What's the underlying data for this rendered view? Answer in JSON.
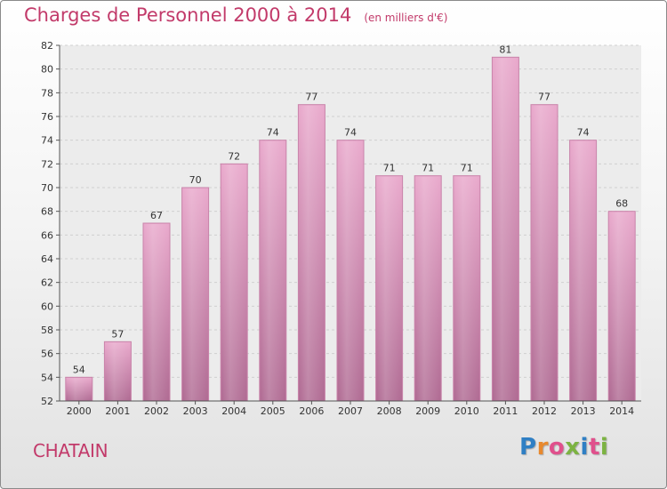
{
  "chart_data": {
    "type": "bar",
    "title": "Charges de Personnel 2000 à 2014",
    "subtitle": "(en milliers d'€)",
    "categories": [
      "2000",
      "2001",
      "2002",
      "2003",
      "2004",
      "2005",
      "2006",
      "2007",
      "2008",
      "2009",
      "2010",
      "2011",
      "2012",
      "2013",
      "2014"
    ],
    "values": [
      54,
      57,
      67,
      70,
      72,
      74,
      77,
      74,
      71,
      71,
      71,
      81,
      77,
      74,
      68
    ],
    "ylim": [
      52,
      82
    ],
    "yticks": [
      52,
      54,
      56,
      58,
      60,
      62,
      64,
      66,
      68,
      70,
      72,
      74,
      76,
      78,
      80,
      82
    ],
    "grid": true,
    "xlabel": "",
    "ylabel": "",
    "bar_color": "#d68fb4"
  },
  "footer": {
    "commune": "CHATAIN",
    "brand": [
      "P",
      "r",
      "o",
      "x",
      "i",
      "t",
      "i"
    ]
  },
  "colors": {
    "title": "#c23a6a",
    "logo": [
      "#2f7fc4",
      "#e8892e",
      "#e0508c",
      "#7cb342",
      "#2f7fc4",
      "#e0508c",
      "#7cb342"
    ]
  }
}
